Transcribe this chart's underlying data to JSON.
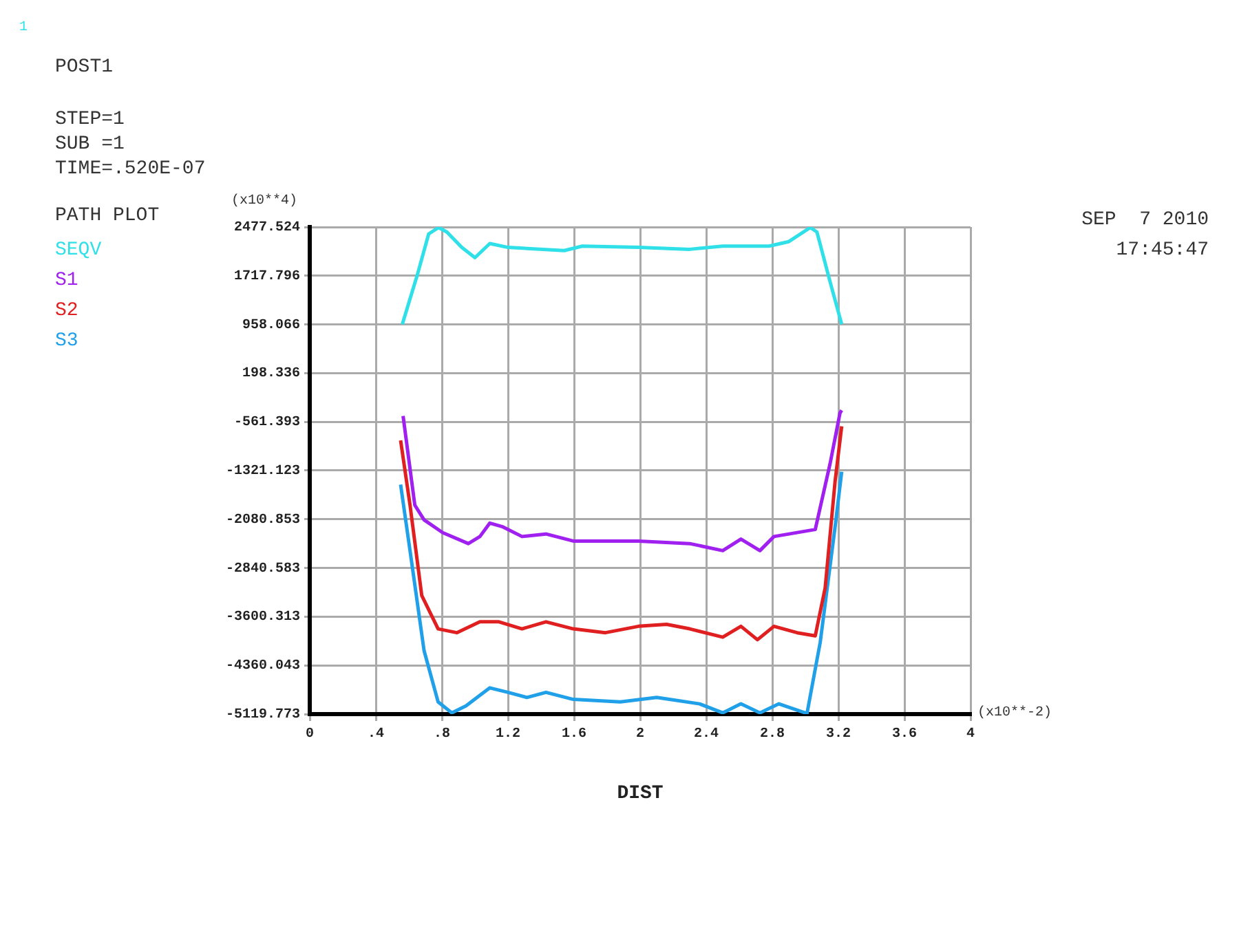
{
  "chart_data": {
    "type": "line",
    "xlabel": "DIST",
    "ylabel": "(x10**4)",
    "annotations": [
      "1",
      "POST1",
      "STEP=1",
      "SUB =1",
      "TIME=.520E-07",
      "PATH PLOT",
      "SEP  7 2010",
      "17:45:47",
      "(x10**-2)"
    ],
    "xlim": [
      0,
      4
    ],
    "xticks": [
      0,
      {
        "value": 0.4,
        "label": ".4"
      },
      {
        "value": 0.8,
        "label": ".8"
      },
      1.2,
      1.6,
      2,
      2.4,
      2.8,
      3.2,
      3.6,
      4
    ],
    "ylim": [
      -5119.773,
      2477.524
    ],
    "yticks": [
      -5119.773,
      -4360.043,
      -3600.313,
      -2840.583,
      -2080.853,
      -1321.123,
      -561.393,
      198.336,
      958.066,
      1717.796,
      2477.524
    ],
    "grid": true,
    "legend": "left",
    "series": [
      {
        "name": "SEQV",
        "color": "#30e0e8",
        "x": [
          0.56,
          0.65,
          0.72,
          0.78,
          0.83,
          0.92,
          1.0,
          1.09,
          1.2,
          1.54,
          1.65,
          1.99,
          2.3,
          2.5,
          2.78,
          2.9,
          3.03,
          3.07,
          3.15,
          3.22
        ],
        "values": [
          960,
          1720,
          2370,
          2470,
          2400,
          2160,
          2000,
          2220,
          2160,
          2110,
          2180,
          2160,
          2130,
          2180,
          2180,
          2250,
          2470,
          2400,
          1620,
          960
        ]
      },
      {
        "name": "S1",
        "color": "#a020f0",
        "x": [
          0.565,
          0.636,
          0.692,
          0.805,
          0.96,
          1.03,
          1.09,
          1.17,
          1.285,
          1.43,
          1.595,
          1.99,
          2.3,
          2.5,
          2.61,
          2.725,
          2.81,
          3.06,
          3.15,
          3.21,
          3.22
        ],
        "values": [
          -470,
          -1860,
          -2090,
          -2290,
          -2460,
          -2350,
          -2140,
          -2200,
          -2350,
          -2310,
          -2420,
          -2420,
          -2460,
          -2570,
          -2390,
          -2570,
          -2350,
          -2240,
          -1210,
          -420,
          -380
        ]
      },
      {
        "name": "S2",
        "color": "#e02020",
        "x": [
          0.55,
          0.607,
          0.678,
          0.777,
          0.89,
          1.03,
          1.145,
          1.285,
          1.43,
          1.595,
          1.79,
          1.99,
          2.16,
          2.3,
          2.5,
          2.61,
          2.71,
          2.81,
          2.95,
          3.06,
          3.12,
          3.18,
          3.22
        ],
        "values": [
          -850,
          -1860,
          -3270,
          -3790,
          -3850,
          -3680,
          -3680,
          -3790,
          -3680,
          -3790,
          -3850,
          -3750,
          -3720,
          -3790,
          -3920,
          -3750,
          -3960,
          -3750,
          -3850,
          -3900,
          -3150,
          -1490,
          -630
        ]
      },
      {
        "name": "S3",
        "color": "#20a0e8",
        "x": [
          0.55,
          0.607,
          0.692,
          0.777,
          0.86,
          0.946,
          1.09,
          1.2,
          1.314,
          1.43,
          1.595,
          1.88,
          2.1,
          2.36,
          2.5,
          2.61,
          2.725,
          2.84,
          3.01,
          3.09,
          3.18,
          3.22
        ],
        "values": [
          -1540,
          -2570,
          -4130,
          -4930,
          -5100,
          -4990,
          -4710,
          -4780,
          -4860,
          -4780,
          -4890,
          -4930,
          -4860,
          -4960,
          -5100,
          -4960,
          -5100,
          -4960,
          -5110,
          -4000,
          -2200,
          -1340
        ]
      }
    ]
  }
}
